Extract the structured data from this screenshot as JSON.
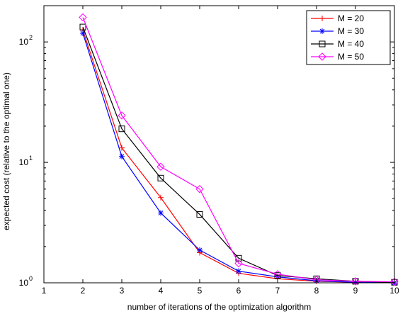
{
  "chart_data": {
    "type": "line",
    "xlabel": "number of iterations of the optimization algorithm",
    "ylabel": "expected cost (relative to the optimal one)",
    "xlim": [
      1,
      10
    ],
    "ylim": [
      1,
      200
    ],
    "yscale": "log",
    "grid": false,
    "legend_position": "top-right",
    "x_ticks": [
      1,
      2,
      3,
      4,
      5,
      6,
      7,
      8,
      9,
      10
    ],
    "y_ticks": [
      {
        "value": 1,
        "base": "10",
        "exp": "0"
      },
      {
        "value": 10,
        "base": "10",
        "exp": "1"
      },
      {
        "value": 100,
        "base": "10",
        "exp": "2"
      }
    ],
    "x": [
      2,
      3,
      4,
      5,
      6,
      7,
      8,
      9,
      10
    ],
    "series": [
      {
        "name": "M = 20",
        "color": "#ff0000",
        "marker": "plus",
        "values": [
          125,
          13.2,
          5.1,
          1.78,
          1.2,
          1.08,
          1.03,
          1.01,
          1.0
        ]
      },
      {
        "name": "M = 30",
        "color": "#0000ff",
        "marker": "star",
        "values": [
          118,
          11.2,
          3.8,
          1.87,
          1.25,
          1.12,
          1.04,
          1.01,
          1.0
        ]
      },
      {
        "name": "M = 40",
        "color": "#000000",
        "marker": "square",
        "values": [
          133,
          19.0,
          7.4,
          3.7,
          1.6,
          1.15,
          1.08,
          1.03,
          1.01
        ]
      },
      {
        "name": "M = 50",
        "color": "#ff00ff",
        "marker": "diamond",
        "values": [
          160,
          24.5,
          9.2,
          6.0,
          1.45,
          1.18,
          1.06,
          1.03,
          1.02
        ]
      }
    ]
  }
}
